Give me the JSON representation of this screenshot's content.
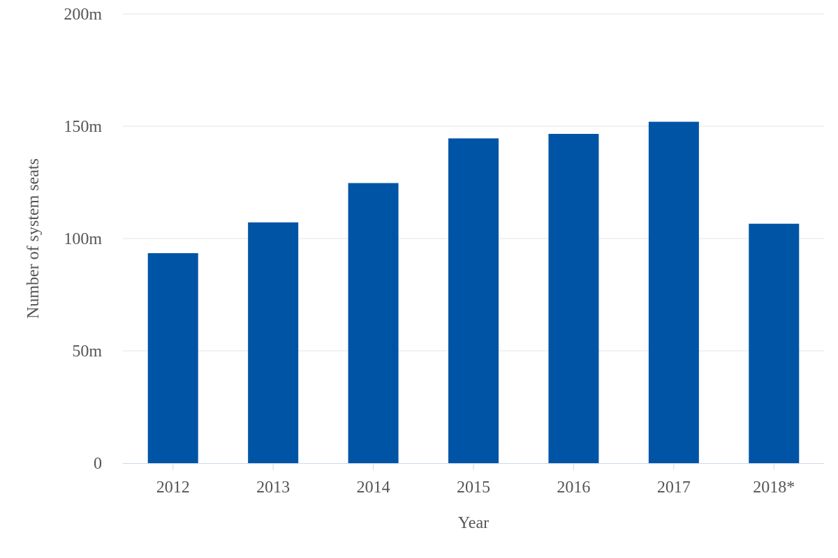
{
  "chart_data": {
    "type": "bar",
    "categories": [
      "2012",
      "2013",
      "2014",
      "2015",
      "2016",
      "2017",
      "2018*"
    ],
    "series": [
      {
        "values": [
          93.5,
          107.2,
          124.7,
          144.6,
          146.6,
          152.0,
          106.6
        ]
      }
    ],
    "xlabel": "Year",
    "ylabel": "Number of system seats",
    "ylim": [
      0,
      200
    ],
    "yticks": [
      0,
      50,
      100,
      150,
      200
    ],
    "ytick_labels": [
      "0",
      "50m",
      "100m",
      "150m",
      "200m"
    ],
    "grid": true,
    "colors": {
      "bar": "#0054a6"
    }
  }
}
